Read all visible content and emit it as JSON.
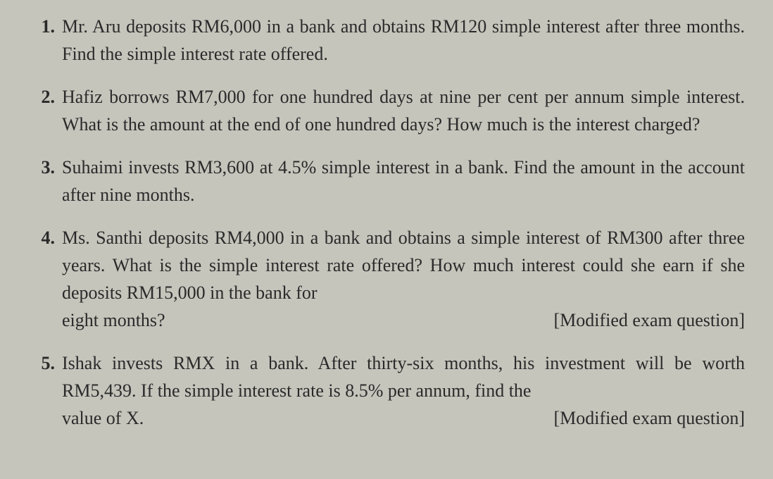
{
  "page": {
    "background_color": "#c5c5bc",
    "text_color": "#2a2a2a",
    "font_family": "Georgia, serif",
    "body_fontsize": 26,
    "number_fontsize": 26
  },
  "questions": [
    {
      "number": "1.",
      "text": "Mr. Aru deposits RM6,000 in a bank and obtains RM120 simple interest after three months. Find the simple interest rate offered.",
      "tag": ""
    },
    {
      "number": "2.",
      "text": "Hafiz borrows RM7,000 for one hundred days at nine per cent per annum simple interest. What is the amount at the end of one hundred days? How much is the interest charged?",
      "tag": ""
    },
    {
      "number": "3.",
      "text": "Suhaimi invests RM3,600 at 4.5% simple interest in a bank. Find the amount in the account after nine months.",
      "tag": ""
    },
    {
      "number": "4.",
      "text_main": "Ms. Santhi deposits RM4,000 in a bank and obtains a simple interest of RM300 after three years. What is the simple interest rate offered? How much interest could she earn if she deposits RM15,000 in the bank for",
      "text_last": "eight months?",
      "tag": "[Modified exam question]"
    },
    {
      "number": "5.",
      "text_main": "Ishak invests RMX in a bank. After thirty-six months, his investment will be worth RM5,439. If the simple interest rate is 8.5% per annum, find the",
      "text_last": "value of X.",
      "tag": "[Modified exam question]"
    }
  ]
}
